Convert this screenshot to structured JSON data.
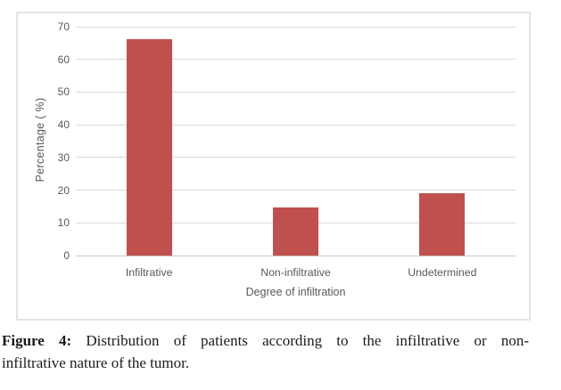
{
  "figure": {
    "caption": {
      "label": "Figure 4:",
      "line1_rest": "Distribution of patients according to the infiltrative or non-",
      "line2": "infiltrative nature of the tumor."
    }
  },
  "chart_data": {
    "type": "bar",
    "categories": [
      "Infiltrative",
      "Non-infiltrative",
      "Undetermined"
    ],
    "values": [
      66.2,
      14.6,
      19.2
    ],
    "xlabel": "Degree of infiltration",
    "ylabel": "Percentage ( %)",
    "ylim": [
      0,
      70
    ],
    "yticks": [
      0,
      10,
      20,
      30,
      40,
      50,
      60,
      70
    ],
    "grid": true,
    "legend": "none",
    "bar_color": "#C0504D",
    "gridline_color": "#D9D9D9",
    "axis_line_color": "#C6C6C6",
    "tick_label_color": "#595959",
    "frame_border_color": "#E4E4E4"
  }
}
